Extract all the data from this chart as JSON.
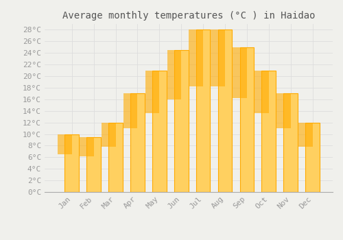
{
  "title": "Average monthly temperatures (°C ) in Haidao",
  "months": [
    "Jan",
    "Feb",
    "Mar",
    "Apr",
    "May",
    "Jun",
    "Jul",
    "Aug",
    "Sep",
    "Oct",
    "Nov",
    "Dec"
  ],
  "temperatures": [
    10,
    9.5,
    12,
    17,
    21,
    24.5,
    28,
    28,
    25,
    21,
    17,
    12
  ],
  "bar_color_top": "#FFAA00",
  "bar_color_bottom": "#FFD060",
  "background_color": "#F0F0EC",
  "grid_color": "#DDDDDD",
  "ylim": [
    0,
    29
  ],
  "yticks": [
    0,
    2,
    4,
    6,
    8,
    10,
    12,
    14,
    16,
    18,
    20,
    22,
    24,
    26,
    28
  ],
  "title_fontsize": 10,
  "tick_fontsize": 8,
  "title_color": "#555555",
  "tick_color": "#999999",
  "font_family": "monospace",
  "bar_width": 0.65
}
